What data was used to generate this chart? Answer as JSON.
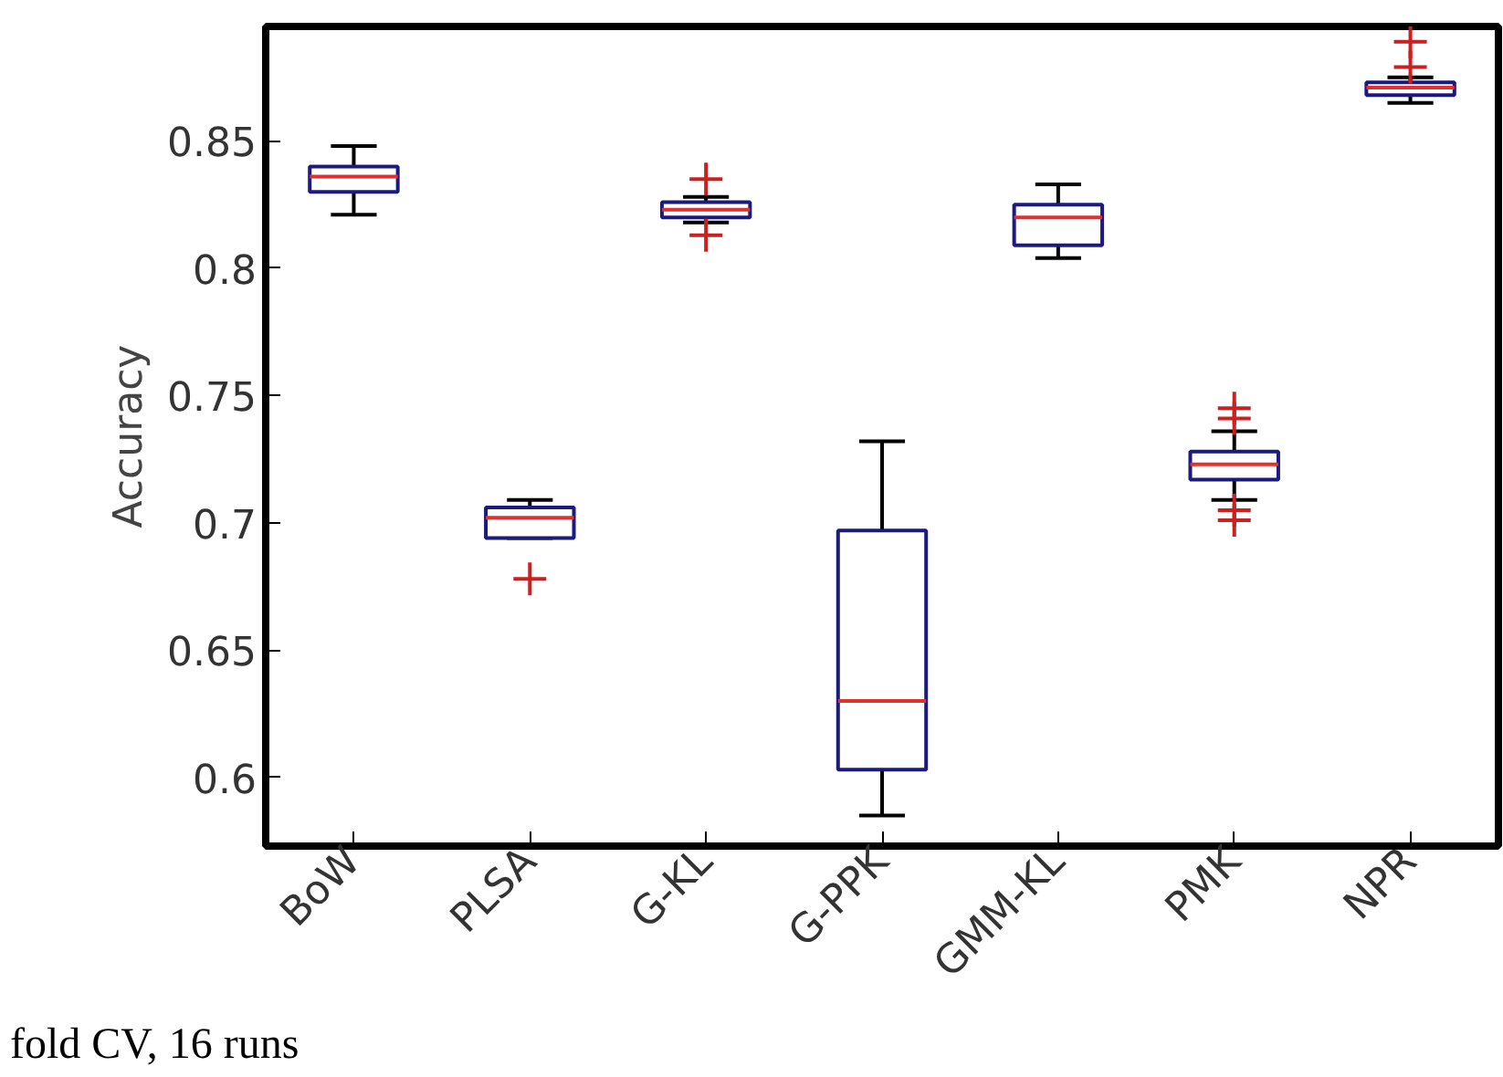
{
  "chart_data": {
    "type": "box",
    "ylabel": "Accuracy",
    "categories": [
      "BoW",
      "PLSA",
      "G-KL",
      "G-PPK",
      "GMM-KL",
      "PMK",
      "NPR"
    ],
    "boxes": [
      {
        "low": 0.821,
        "q1": 0.83,
        "median": 0.836,
        "q3": 0.84,
        "high": 0.848
      },
      {
        "low": 0.694,
        "q1": 0.694,
        "median": 0.702,
        "q3": 0.706,
        "high": 0.709,
        "outliers": [
          0.678
        ]
      },
      {
        "low": 0.818,
        "q1": 0.82,
        "median": 0.823,
        "q3": 0.826,
        "high": 0.828,
        "outliers": [
          0.835,
          0.813
        ]
      },
      {
        "low": 0.585,
        "q1": 0.603,
        "median": 0.63,
        "q3": 0.697,
        "high": 0.732
      },
      {
        "low": 0.804,
        "q1": 0.809,
        "median": 0.82,
        "q3": 0.825,
        "high": 0.833
      },
      {
        "low": 0.709,
        "q1": 0.717,
        "median": 0.723,
        "q3": 0.728,
        "high": 0.736,
        "outliers": [
          0.745,
          0.741,
          0.705,
          0.701
        ]
      },
      {
        "low": 0.865,
        "q1": 0.868,
        "median": 0.871,
        "q3": 0.873,
        "high": 0.875,
        "outliers": [
          0.879,
          0.889
        ]
      }
    ],
    "ylim": [
      0.573,
      0.895
    ],
    "yticks": [
      0.6,
      0.65,
      0.7,
      0.75,
      0.8,
      0.85
    ],
    "grid": false,
    "annotations": [
      "fold CV, 16 runs"
    ]
  }
}
